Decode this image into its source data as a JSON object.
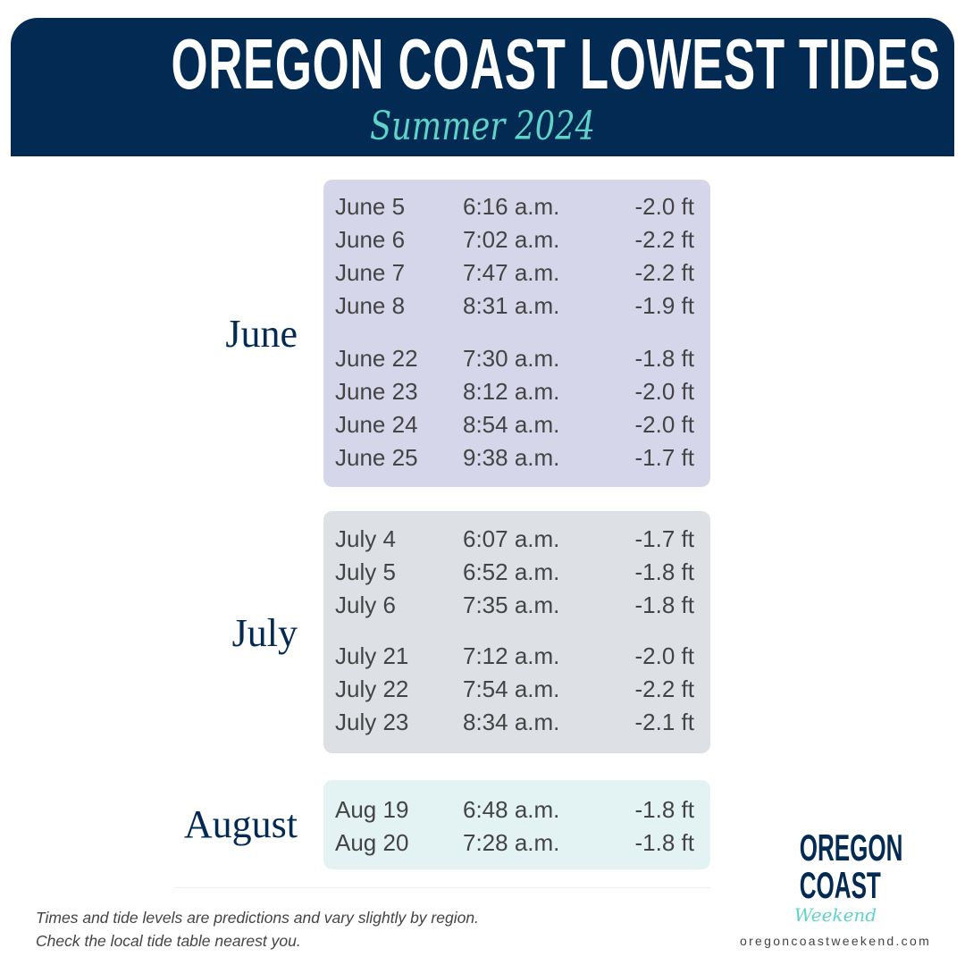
{
  "header": {
    "title": "OREGON COAST LOWEST TIDES",
    "subtitle": "Summer 2024"
  },
  "colors": {
    "navy": "#022a52",
    "teal": "#5fd3c8",
    "june_box": "#d6d6ea",
    "july_box": "#dde1e6",
    "august_box": "#e3f3f3"
  },
  "months": [
    {
      "label": "June",
      "rows": [
        [
          "June 5",
          "6:16 a.m.",
          "-2.0 ft"
        ],
        [
          "June 6",
          "7:02 a.m.",
          "-2.2 ft"
        ],
        [
          "June 7",
          "7:47 a.m.",
          "-2.2 ft"
        ],
        [
          "June 8",
          "8:31 a.m.",
          "-1.9 ft"
        ],
        [
          "June 22",
          "7:30 a.m.",
          "-1.8 ft"
        ],
        [
          "June 23",
          "8:12 a.m.",
          "-2.0 ft"
        ],
        [
          "June 24",
          "8:54 a.m.",
          "-2.0 ft"
        ],
        [
          "June 25",
          "9:38 a.m.",
          "-1.7 ft"
        ]
      ]
    },
    {
      "label": "July",
      "rows": [
        [
          "July 4",
          "6:07 a.m.",
          "-1.7 ft"
        ],
        [
          "July 5",
          "6:52 a.m.",
          "-1.8 ft"
        ],
        [
          "July 6",
          "7:35 a.m.",
          "-1.8 ft"
        ],
        [
          "July 21",
          "7:12 a.m.",
          "-2.0 ft"
        ],
        [
          "July 22",
          "7:54 a.m.",
          "-2.2 ft"
        ],
        [
          "July 23",
          "8:34 a.m.",
          "-2.1 ft"
        ]
      ]
    },
    {
      "label": "August",
      "rows": [
        [
          "Aug 19",
          "6:48 a.m.",
          "-1.8 ft"
        ],
        [
          "Aug 20",
          "7:28 a.m.",
          "-1.8 ft"
        ]
      ]
    }
  ],
  "footer": {
    "line1": "Times and tide levels are predictions and vary slightly by region.",
    "line2": "Check the local tide table nearest you."
  },
  "logo": {
    "line1": "OREGON",
    "line2": "COAST",
    "line3": "Weekend",
    "url": "oregoncoastweekend.com"
  }
}
